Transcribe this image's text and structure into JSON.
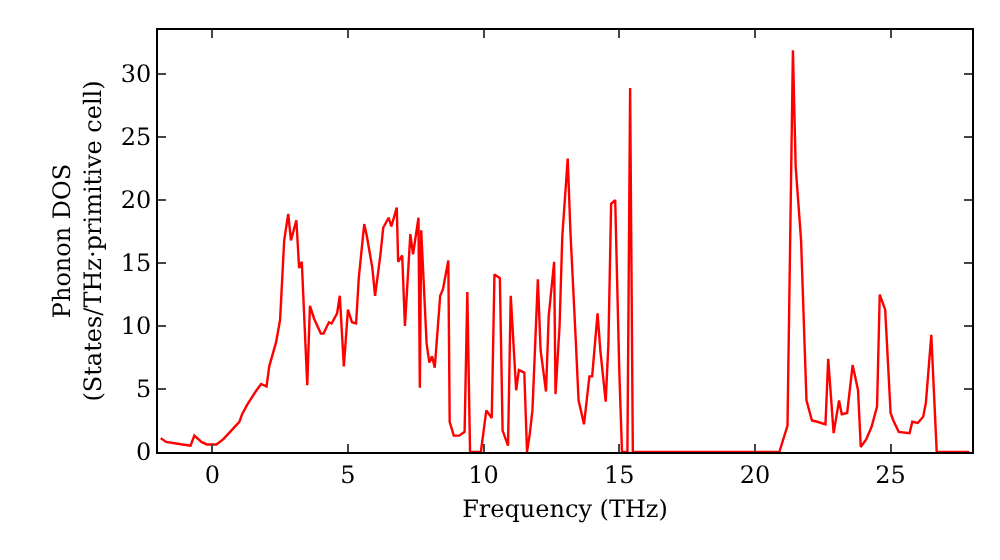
{
  "chart_data": {
    "type": "line",
    "xlabel": "Frequency (THz)",
    "ylabel": "Phonon DOS\n(States/THz·primitive cell)",
    "xlim": [
      -2,
      28
    ],
    "ylim": [
      0,
      33.5
    ],
    "xticks": [
      0,
      5,
      10,
      15,
      20,
      25
    ],
    "yticks": [
      0,
      5,
      10,
      15,
      20,
      25,
      30
    ],
    "grid": false,
    "marker": "none",
    "line_style": "solid",
    "series": [
      {
        "color": "#ff0000",
        "x": [
          -1.9,
          -1.7,
          -1.1,
          -0.8,
          -0.66,
          -0.4,
          -0.2,
          0.15,
          0.4,
          0.7,
          1.0,
          1.1,
          1.3,
          1.6,
          1.8,
          2.0,
          2.1,
          2.35,
          2.5,
          2.65,
          2.8,
          2.9,
          3.1,
          3.2,
          3.3,
          3.5,
          3.6,
          3.75,
          4.0,
          4.1,
          4.3,
          4.4,
          4.6,
          4.7,
          4.85,
          5.0,
          5.15,
          5.3,
          5.4,
          5.6,
          5.7,
          5.9,
          6.0,
          6.2,
          6.3,
          6.5,
          6.6,
          6.8,
          6.85,
          7.0,
          7.1,
          7.3,
          7.4,
          7.6,
          7.65,
          7.7,
          7.9,
          8.0,
          8.1,
          8.2,
          8.4,
          8.5,
          8.7,
          8.75,
          8.9,
          9.1,
          9.3,
          9.4,
          9.5,
          9.7,
          9.9,
          10.1,
          10.3,
          10.4,
          10.6,
          10.7,
          10.9,
          11.0,
          11.2,
          11.3,
          11.5,
          11.6,
          11.7,
          11.8,
          12.0,
          12.1,
          12.3,
          12.4,
          12.6,
          12.65,
          12.8,
          12.9,
          13.1,
          13.2,
          13.4,
          13.5,
          13.7,
          13.9,
          14.0,
          14.2,
          14.3,
          14.5,
          14.6,
          14.7,
          14.85,
          15.0,
          15.1,
          15.3,
          15.4,
          15.5,
          17.6,
          20.9,
          21.2,
          21.4,
          21.5,
          21.7,
          21.9,
          22.1,
          22.3,
          22.6,
          22.7,
          22.9,
          23.1,
          23.2,
          23.4,
          23.6,
          23.8,
          23.9,
          24.1,
          24.3,
          24.5,
          24.6,
          24.8,
          25.0,
          25.1,
          25.3,
          25.7,
          25.8,
          26.0,
          26.2,
          26.3,
          26.5,
          26.7,
          27.9
        ],
        "values": [
          1.1,
          0.8,
          0.6,
          0.5,
          1.3,
          0.8,
          0.6,
          0.6,
          1.0,
          1.7,
          2.4,
          3.0,
          3.8,
          4.8,
          5.4,
          5.2,
          6.8,
          8.7,
          10.5,
          16.8,
          18.9,
          16.8,
          18.4,
          14.6,
          15.1,
          5.3,
          11.6,
          10.6,
          9.4,
          9.4,
          10.3,
          10.2,
          11.0,
          12.4,
          6.8,
          11.3,
          10.3,
          10.2,
          13.8,
          18.1,
          17.1,
          14.6,
          12.4,
          15.7,
          17.8,
          18.6,
          17.9,
          19.4,
          15.1,
          15.6,
          10.0,
          17.3,
          15.7,
          18.6,
          5.1,
          17.6,
          8.6,
          7.1,
          7.6,
          6.7,
          12.4,
          12.9,
          15.2,
          2.4,
          1.3,
          1.3,
          1.6,
          12.7,
          0,
          0,
          0,
          3.3,
          2.7,
          14.1,
          13.8,
          1.7,
          0.5,
          12.4,
          4.9,
          6.5,
          6.3,
          0,
          1.4,
          3.3,
          13.7,
          8.1,
          4.8,
          10.8,
          15.1,
          4.6,
          10.0,
          17.1,
          23.3,
          17.5,
          8.7,
          4.1,
          2.2,
          6.0,
          6.0,
          11.0,
          8.1,
          4.0,
          8.6,
          19.7,
          20.0,
          6.5,
          0,
          0,
          28.9,
          0,
          0,
          0,
          2.1,
          31.9,
          22.7,
          16.8,
          4.1,
          2.5,
          2.4,
          2.2,
          7.4,
          1.5,
          4.1,
          3.0,
          3.1,
          6.9,
          4.9,
          0.4,
          1.0,
          2.0,
          3.6,
          12.5,
          11.3,
          3.1,
          2.5,
          1.6,
          1.5,
          2.4,
          2.3,
          2.8,
          3.9,
          9.3,
          0,
          0
        ]
      }
    ]
  }
}
